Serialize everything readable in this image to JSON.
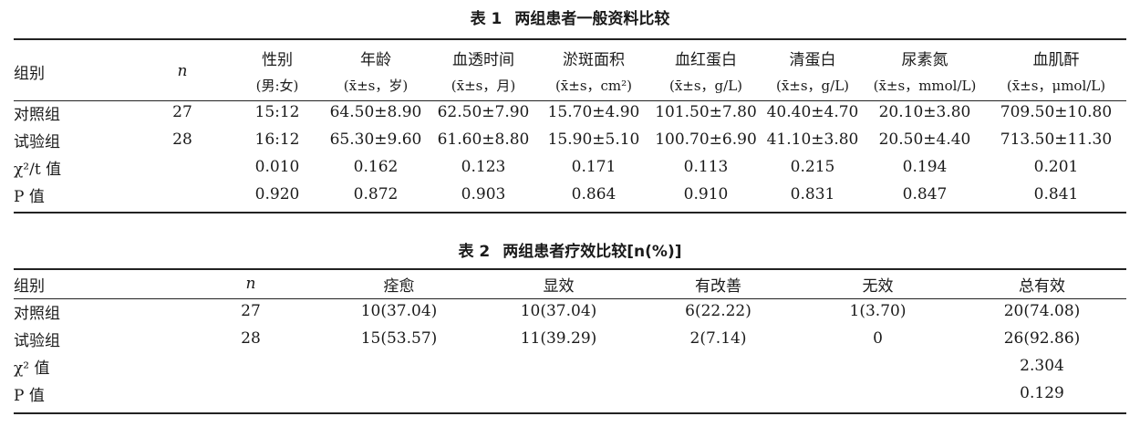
{
  "table1": {
    "caption_num": "表 1",
    "caption_title": "两组患者一般资料比较",
    "header_top": [
      "组别",
      "n",
      "性别",
      "年龄",
      "血透时间",
      "淤斑面积",
      "血红蛋白",
      "清蛋白",
      "尿素氮",
      "血肌酐"
    ],
    "header_sub": [
      "",
      "",
      "(男:女)",
      "(x̄±s，岁)",
      "(x̄±s，月)",
      "(x̄±s，cm²)",
      "(x̄±s，g/L)",
      "(x̄±s，g/L)",
      "(x̄±s，mmol/L)",
      "(x̄±s，μmol/L)"
    ],
    "rows": [
      [
        "对照组",
        "27",
        "15:12",
        "64.50±8.90",
        "62.50±7.90",
        "15.70±4.90",
        "101.50±7.80",
        "40.40±4.70",
        "20.10±3.80",
        "709.50±10.80"
      ],
      [
        "试验组",
        "28",
        "16:12",
        "65.30±9.60",
        "61.60±8.80",
        "15.90±5.10",
        "100.70±6.90",
        "41.10±3.80",
        "20.50±4.40",
        "713.50±11.30"
      ],
      [
        "χ²/t 值",
        "",
        "0.010",
        "0.162",
        "0.123",
        "0.171",
        "0.113",
        "0.215",
        "0.194",
        "0.201"
      ],
      [
        "P 值",
        "",
        "0.920",
        "0.872",
        "0.903",
        "0.864",
        "0.910",
        "0.831",
        "0.847",
        "0.841"
      ]
    ]
  },
  "table2": {
    "caption_num": "表 2",
    "caption_title": "两组患者疗效比较[n(%)]",
    "header": [
      "组别",
      "n",
      "痊愈",
      "显效",
      "有改善",
      "无效",
      "总有效"
    ],
    "rows": [
      [
        "对照组",
        "27",
        "10(37.04)",
        "10(37.04)",
        "6(22.22)",
        "1(3.70)",
        "20(74.08)"
      ],
      [
        "试验组",
        "28",
        "15(53.57)",
        "11(39.29)",
        "2(7.14)",
        "0",
        "26(92.86)"
      ],
      [
        "χ² 值",
        "",
        "",
        "",
        "",
        "",
        "2.304"
      ],
      [
        "P 值",
        "",
        "",
        "",
        "",
        "",
        "0.129"
      ]
    ]
  }
}
